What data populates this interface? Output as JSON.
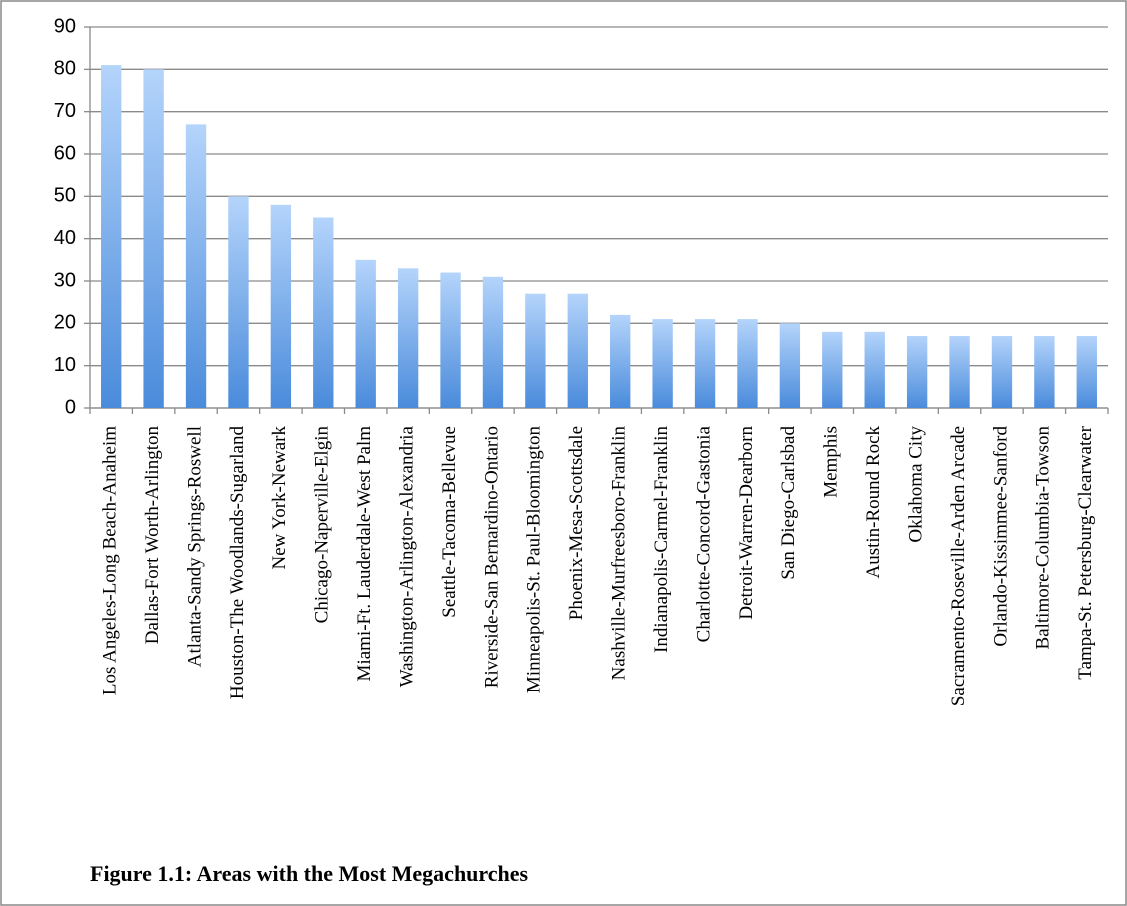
{
  "chart_data": {
    "type": "bar",
    "title": "Figure 1.1: Areas with the Most Megachurches",
    "categories": [
      "Los Angeles-Long Beach-Anaheim",
      "Dallas-Fort Worth-Arlington",
      "Atlanta-Sandy Springs-Roswell",
      "Houston-The Woodlands-Sugarland",
      "New York-Newark",
      "Chicago-Naperville-Elgin",
      "Miami-Ft. Lauderdale-West Palm",
      "Washington-Arlington-Alexandria",
      "Seattle-Tacoma-Bellevue",
      "Riverside-San Bernardino-Ontario",
      "Minneapolis-St. Paul-Bloomington",
      "Phoenix-Mesa-Scottsdale",
      "Nashville-Murfreesboro-Franklin",
      "Indianapolis-Carmel-Franklin",
      "Charlotte-Concord-Gastonia",
      "Detroit-Warren-Dearborn",
      "San Diego-Carlsbad",
      "Memphis",
      "Austin-Round Rock",
      "Oklahoma City",
      "Sacramento-Roseville-Arden Arcade",
      "Orlando-Kissimmee-Sanford",
      "Baltimore-Columbia-Towson",
      "Tampa-St. Petersburg-Clearwater"
    ],
    "values": [
      81,
      80,
      67,
      50,
      48,
      45,
      35,
      33,
      32,
      31,
      27,
      27,
      22,
      21,
      21,
      21,
      20,
      18,
      18,
      17,
      17,
      17,
      17,
      17
    ],
    "gradient": [
      "#b4d4fb",
      "#4a8bdb"
    ],
    "ylim": [
      0,
      90
    ],
    "yticks": [
      0,
      10,
      20,
      30,
      40,
      50,
      60,
      70,
      80,
      90
    ],
    "grid": true
  }
}
